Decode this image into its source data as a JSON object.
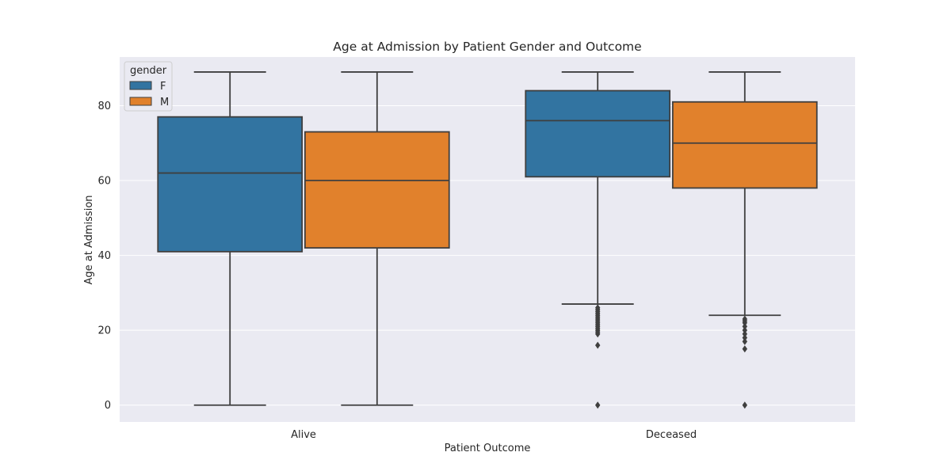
{
  "chart_data": {
    "type": "boxplot",
    "title": "Age at Admission by Patient Gender and Outcome",
    "xlabel": "Patient Outcome",
    "ylabel": "Age at Admission",
    "categories": [
      "Alive",
      "Deceased"
    ],
    "ylim": [
      -4.5,
      93
    ],
    "yticks": [
      0,
      20,
      40,
      60,
      80
    ],
    "grid": true,
    "legend": {
      "title": "gender",
      "placement": "top-left"
    },
    "series": [
      {
        "name": "F",
        "color": "#3274a1",
        "boxes": [
          {
            "category": "Alive",
            "whisker_low": 0,
            "q1": 41,
            "median": 62,
            "q3": 77,
            "whisker_high": 89,
            "outliers": []
          },
          {
            "category": "Deceased",
            "whisker_low": 27,
            "q1": 61,
            "median": 76,
            "q3": 84,
            "whisker_high": 89,
            "outliers": [
              0,
              16,
              19,
              19.5,
              20,
              20.5,
              21,
              21.5,
              22,
              22.5,
              23,
              23.5,
              24,
              24.5,
              25,
              25.5,
              26
            ]
          }
        ]
      },
      {
        "name": "M",
        "color": "#e1812c",
        "boxes": [
          {
            "category": "Alive",
            "whisker_low": 0,
            "q1": 42,
            "median": 60,
            "q3": 73,
            "whisker_high": 89,
            "outliers": []
          },
          {
            "category": "Deceased",
            "whisker_low": 24,
            "q1": 58,
            "median": 70,
            "q3": 81,
            "whisker_high": 89,
            "outliers": [
              0,
              15,
              17,
              18,
              19,
              20,
              21,
              22,
              22.5,
              23
            ]
          }
        ]
      }
    ]
  }
}
